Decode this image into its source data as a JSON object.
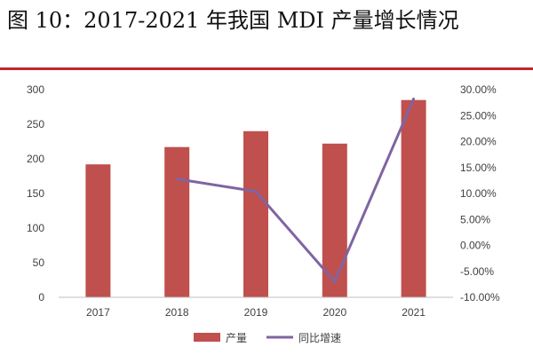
{
  "figure_title": "图 10：2017-2021 年我国 MDI 产量增长情况",
  "colors": {
    "title_rule": "#c0272d",
    "bar": "#c0504d",
    "line": "#8064a2",
    "axis": "#bfbfbf"
  },
  "chart_data": {
    "type": "bar",
    "title": "",
    "categories": [
      "2017",
      "2018",
      "2019",
      "2020",
      "2021"
    ],
    "series": [
      {
        "name": "产量",
        "type": "bar",
        "axis": "left",
        "values": [
          192,
          217,
          240,
          222,
          285
        ]
      },
      {
        "name": "同比增速",
        "type": "line",
        "axis": "right",
        "values": [
          null,
          12.8,
          10.4,
          -7.0,
          28.2
        ]
      }
    ],
    "y_left": {
      "min": 0,
      "max": 300,
      "ticks": [
        0,
        50,
        100,
        150,
        200,
        250,
        300
      ],
      "tick_labels": [
        "0",
        "50",
        "100",
        "150",
        "200",
        "250",
        "300"
      ]
    },
    "y_right": {
      "min": -10,
      "max": 30,
      "ticks": [
        -10,
        -5,
        0,
        5,
        10,
        15,
        20,
        25,
        30
      ],
      "tick_labels": [
        "-10.00%",
        "-5.00%",
        "0.00%",
        "5.00%",
        "10.00%",
        "15.00%",
        "20.00%",
        "25.00%",
        "30.00%"
      ]
    },
    "legend": {
      "position": "bottom",
      "entries": [
        "产量",
        "同比增速"
      ]
    },
    "grid": false
  }
}
